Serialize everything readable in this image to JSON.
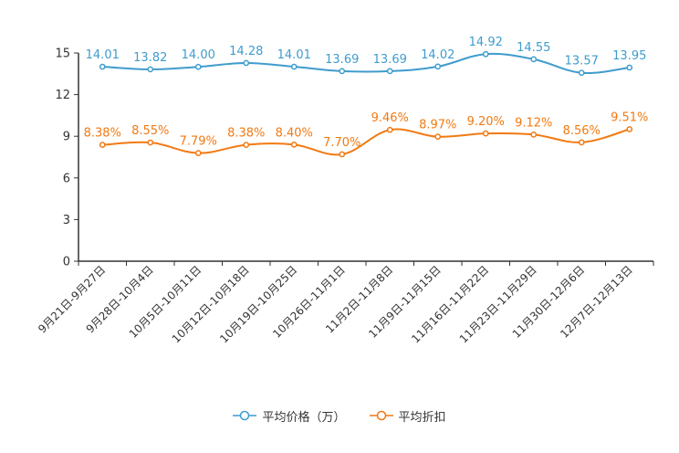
{
  "chart_data": {
    "type": "line",
    "title": "",
    "xlabel": "",
    "ylabel": "",
    "ylim": [
      0,
      15
    ],
    "yticks": [
      0,
      3,
      6,
      9,
      12,
      15
    ],
    "grid": false,
    "legend_position": "bottom-center",
    "categories": [
      "9月21日-9月27日",
      "9月28日-10月4日",
      "10月5日-10月11日",
      "10月12日-10月18日",
      "10月19日-10月25日",
      "10月26日-11月1日",
      "11月2日-11月8日",
      "11月9日-11月15日",
      "11月16日-11月22日",
      "11月23日-11月29日",
      "11月30日-12月6日",
      "12月7日-12月13日"
    ],
    "series": [
      {
        "name": "平均价格（万）",
        "color": "#3f9ccd",
        "values": [
          14.01,
          13.82,
          14.0,
          14.28,
          14.01,
          13.69,
          13.69,
          14.02,
          14.92,
          14.55,
          13.57,
          13.95
        ],
        "labels": [
          "14.01",
          "13.82",
          "14.00",
          "14.28",
          "14.01",
          "13.69",
          "13.69",
          "14.02",
          "14.92",
          "14.55",
          "13.57",
          "13.95"
        ]
      },
      {
        "name": "平均折扣",
        "color": "#f27a12",
        "values": [
          8.38,
          8.55,
          7.79,
          8.38,
          8.4,
          7.7,
          9.46,
          8.97,
          9.2,
          9.12,
          8.56,
          9.51
        ],
        "labels": [
          "8.38%",
          "8.55%",
          "7.79%",
          "8.38%",
          "8.40%",
          "7.70%",
          "9.46%",
          "8.97%",
          "9.20%",
          "9.12%",
          "8.56%",
          "9.51%"
        ]
      }
    ]
  }
}
